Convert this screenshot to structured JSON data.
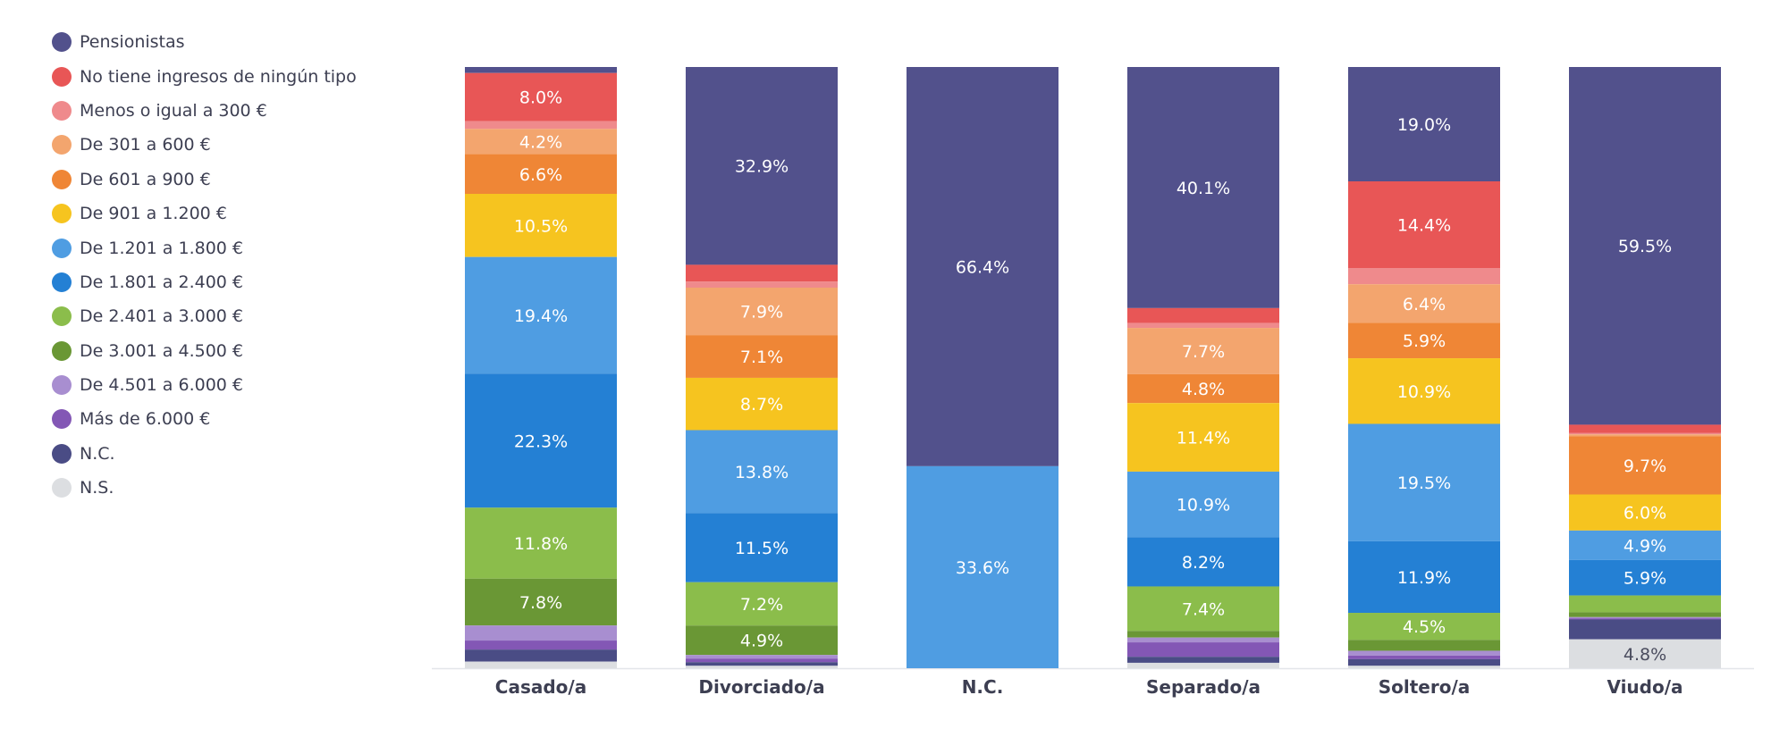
{
  "chart_data": {
    "type": "bar",
    "stacked": true,
    "normalized": true,
    "ylim": [
      0,
      100
    ],
    "legend_position": "left",
    "grid": false,
    "categories": [
      "Casado/a",
      "Divorciado/a",
      "N.C.",
      "Separado/a",
      "Soltero/a",
      "Viudo/a"
    ],
    "series": [
      {
        "name": "Pensionistas",
        "color": "#52518c",
        "values": [
          1.0,
          32.9,
          66.4,
          40.1,
          19.0,
          59.5
        ]
      },
      {
        "name": "No tiene ingresos de ningún tipo",
        "color": "#e85656",
        "values": [
          8.0,
          2.8,
          0,
          2.5,
          14.4,
          1.4
        ]
      },
      {
        "name": "Menos o igual a 300 €",
        "color": "#ef8a8c",
        "values": [
          1.3,
          1.0,
          0,
          0.8,
          2.7,
          0.2
        ]
      },
      {
        "name": "De 301 a 600 €",
        "color": "#f3a56e",
        "values": [
          4.2,
          7.9,
          0,
          7.7,
          6.4,
          0.3
        ]
      },
      {
        "name": "De 601 a 900 €",
        "color": "#ef8636",
        "values": [
          6.6,
          7.1,
          0,
          4.8,
          5.9,
          9.7
        ]
      },
      {
        "name": "De 901 a 1.200 €",
        "color": "#f6c41f",
        "values": [
          10.5,
          8.7,
          0,
          11.4,
          10.9,
          6.0
        ]
      },
      {
        "name": "De 1.201 a 1.800 €",
        "color": "#4f9de2",
        "values": [
          19.4,
          13.8,
          33.6,
          10.9,
          19.5,
          4.9
        ]
      },
      {
        "name": "De 1.801 a 2.400 €",
        "color": "#2480d4",
        "values": [
          22.3,
          11.5,
          0,
          8.2,
          11.9,
          5.9
        ]
      },
      {
        "name": "De 2.401 a 3.000 €",
        "color": "#8bbd4b",
        "values": [
          11.8,
          7.2,
          0,
          7.4,
          4.5,
          2.8
        ]
      },
      {
        "name": "De 3.001 a 4.500 €",
        "color": "#6a9735",
        "values": [
          7.8,
          4.9,
          0,
          1.1,
          1.8,
          0.8
        ]
      },
      {
        "name": "De 4.501 a 6.000 €",
        "color": "#a88ed0",
        "values": [
          2.5,
          0.6,
          0,
          0.8,
          0.8,
          0.2
        ]
      },
      {
        "name": "Más de 6.000 €",
        "color": "#8357b5",
        "values": [
          1.5,
          0.6,
          0,
          2.4,
          0.6,
          0.2
        ]
      },
      {
        "name": "N.C.",
        "color": "#4a4c85",
        "values": [
          2.0,
          0.6,
          0,
          1.0,
          1.1,
          3.3
        ]
      },
      {
        "name": "N.S.",
        "color": "#dcdee1",
        "values": [
          1.1,
          0.4,
          0,
          0.9,
          0.4,
          4.8
        ]
      }
    ],
    "labeled_min_value": 4.0
  }
}
